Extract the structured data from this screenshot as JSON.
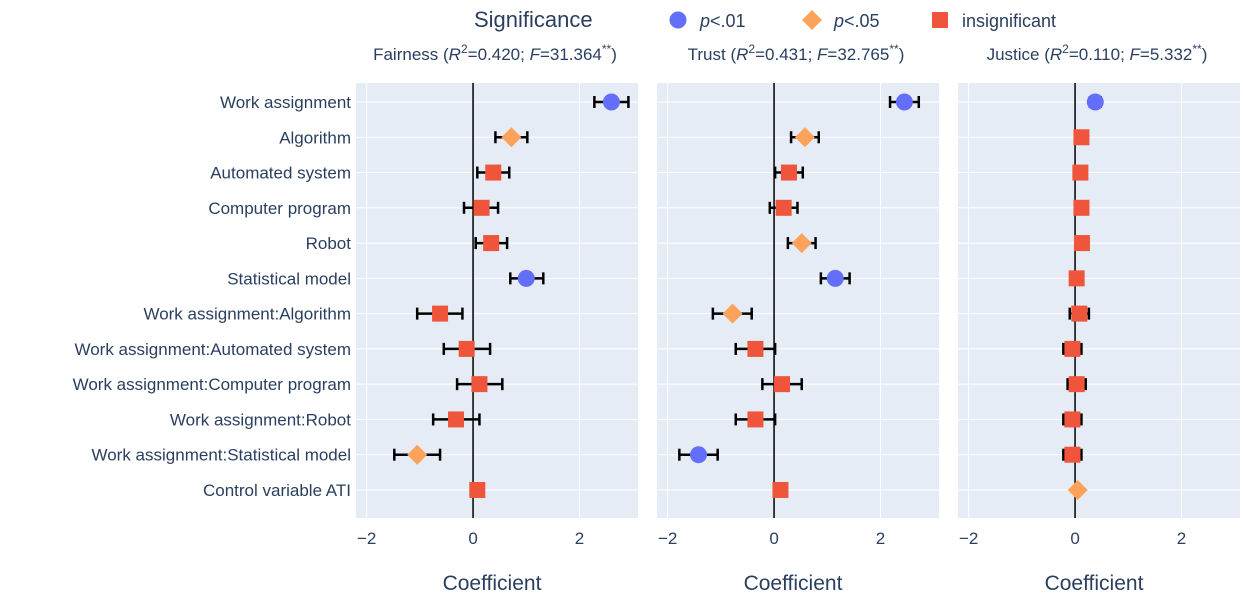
{
  "chart_data": {
    "type": "scatter",
    "legend": {
      "title": "Significance",
      "position": "top",
      "items": [
        {
          "key": "p01",
          "label": "p<.01",
          "symbol": "circle",
          "color": "#636efa"
        },
        {
          "key": "p05",
          "label": "p<.05",
          "symbol": "diamond",
          "color": "#fca25b"
        },
        {
          "key": "ins",
          "label": "insignificant",
          "symbol": "square",
          "color": "#ef553b"
        }
      ]
    },
    "categories": [
      "Work assignment",
      "Algorithm",
      "Automated system",
      "Computer program",
      "Robot",
      "Statistical model",
      "Work assignment:Algorithm",
      "Work assignment:Automated system",
      "Work assignment:Computer program",
      "Work assignment:Robot",
      "Work assignment:Statistical model",
      "Control variable ATI"
    ],
    "xlabel": "Coefficient",
    "xlim": [
      -2.2,
      3.1
    ],
    "xticks": [
      -2,
      0,
      2
    ],
    "xtick_labels": [
      "−2",
      "0",
      "2"
    ],
    "grid": true,
    "panels": [
      {
        "name": "Fairness",
        "r2": "0.420",
        "f": "31.364",
        "stars": "**",
        "points": [
          {
            "coef": 2.6,
            "lo": 2.28,
            "hi": 2.92,
            "sig": "p01"
          },
          {
            "coef": 0.72,
            "lo": 0.42,
            "hi": 1.02,
            "sig": "p05"
          },
          {
            "coef": 0.38,
            "lo": 0.08,
            "hi": 0.68,
            "sig": "ins"
          },
          {
            "coef": 0.16,
            "lo": -0.17,
            "hi": 0.47,
            "sig": "ins"
          },
          {
            "coef": 0.34,
            "lo": 0.05,
            "hi": 0.64,
            "sig": "ins"
          },
          {
            "coef": 1.0,
            "lo": 0.7,
            "hi": 1.32,
            "sig": "p01"
          },
          {
            "coef": -0.62,
            "lo": -1.05,
            "hi": -0.2,
            "sig": "ins"
          },
          {
            "coef": -0.12,
            "lo": -0.55,
            "hi": 0.32,
            "sig": "ins"
          },
          {
            "coef": 0.12,
            "lo": -0.3,
            "hi": 0.55,
            "sig": "ins"
          },
          {
            "coef": -0.32,
            "lo": -0.75,
            "hi": 0.12,
            "sig": "ins"
          },
          {
            "coef": -1.05,
            "lo": -1.48,
            "hi": -0.62,
            "sig": "p05"
          },
          {
            "coef": 0.08,
            "lo": 0.05,
            "hi": 0.11,
            "sig": "ins"
          }
        ]
      },
      {
        "name": "Trust",
        "r2": "0.431",
        "f": "32.765",
        "stars": "**",
        "points": [
          {
            "coef": 2.45,
            "lo": 2.18,
            "hi": 2.72,
            "sig": "p01"
          },
          {
            "coef": 0.58,
            "lo": 0.32,
            "hi": 0.84,
            "sig": "p05"
          },
          {
            "coef": 0.28,
            "lo": 0.02,
            "hi": 0.54,
            "sig": "ins"
          },
          {
            "coef": 0.18,
            "lo": -0.08,
            "hi": 0.44,
            "sig": "ins"
          },
          {
            "coef": 0.52,
            "lo": 0.26,
            "hi": 0.78,
            "sig": "p05"
          },
          {
            "coef": 1.15,
            "lo": 0.88,
            "hi": 1.42,
            "sig": "p01"
          },
          {
            "coef": -0.78,
            "lo": -1.15,
            "hi": -0.42,
            "sig": "p05"
          },
          {
            "coef": -0.35,
            "lo": -0.72,
            "hi": 0.02,
            "sig": "ins"
          },
          {
            "coef": 0.15,
            "lo": -0.22,
            "hi": 0.52,
            "sig": "ins"
          },
          {
            "coef": -0.35,
            "lo": -0.72,
            "hi": 0.02,
            "sig": "ins"
          },
          {
            "coef": -1.42,
            "lo": -1.78,
            "hi": -1.06,
            "sig": "p01"
          },
          {
            "coef": 0.12,
            "lo": 0.09,
            "hi": 0.15,
            "sig": "ins"
          }
        ]
      },
      {
        "name": "Justice",
        "r2": "0.110",
        "f": "5.332",
        "stars": "**",
        "points": [
          {
            "coef": 0.38,
            "lo": 0.28,
            "hi": 0.48,
            "sig": "p01"
          },
          {
            "coef": 0.12,
            "lo": 0.05,
            "hi": 0.19,
            "sig": "ins"
          },
          {
            "coef": 0.1,
            "lo": 0.03,
            "hi": 0.17,
            "sig": "ins"
          },
          {
            "coef": 0.12,
            "lo": 0.03,
            "hi": 0.21,
            "sig": "ins"
          },
          {
            "coef": 0.13,
            "lo": 0.05,
            "hi": 0.21,
            "sig": "ins"
          },
          {
            "coef": 0.03,
            "lo": -0.05,
            "hi": 0.11,
            "sig": "ins"
          },
          {
            "coef": 0.08,
            "lo": -0.1,
            "hi": 0.26,
            "sig": "ins"
          },
          {
            "coef": -0.05,
            "lo": -0.22,
            "hi": 0.12,
            "sig": "ins"
          },
          {
            "coef": 0.03,
            "lo": -0.14,
            "hi": 0.2,
            "sig": "ins"
          },
          {
            "coef": -0.05,
            "lo": -0.22,
            "hi": 0.12,
            "sig": "ins"
          },
          {
            "coef": -0.05,
            "lo": -0.22,
            "hi": 0.12,
            "sig": "ins"
          },
          {
            "coef": 0.05,
            "lo": 0.05,
            "hi": 0.05,
            "sig": "p05"
          }
        ]
      }
    ]
  }
}
